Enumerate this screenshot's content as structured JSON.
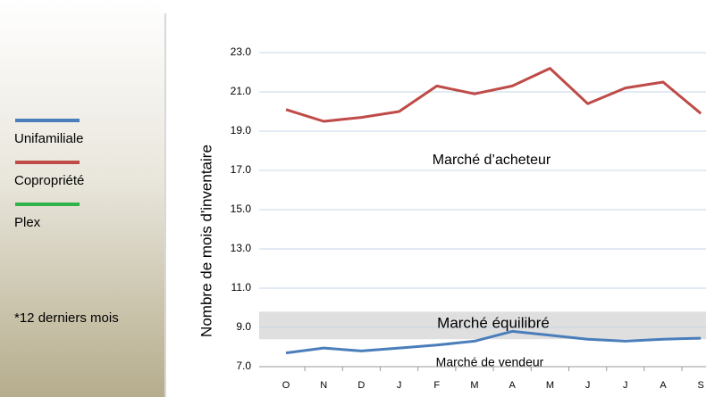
{
  "chart_data": {
    "type": "line",
    "ylabel": "Nombre de mois d'inventaire",
    "categories": [
      "O",
      "N",
      "D",
      "J",
      "F",
      "M",
      "A",
      "M",
      "J",
      "J",
      "A",
      "S"
    ],
    "series": [
      {
        "name": "Unifamiliale",
        "color": "#4a7ebb",
        "values": [
          7.7,
          7.95,
          7.8,
          7.95,
          8.1,
          8.3,
          8.8,
          8.6,
          8.4,
          8.3,
          8.4,
          8.45
        ]
      },
      {
        "name": "Copropriété",
        "color": "#be4b48",
        "values": [
          20.1,
          19.5,
          19.7,
          20.0,
          21.3,
          20.9,
          21.3,
          22.2,
          20.4,
          21.2,
          21.5,
          19.9
        ]
      },
      {
        "name": "Plex",
        "color": "#2fb34a",
        "values": [
          null,
          null,
          null,
          null,
          null,
          null,
          null,
          null,
          null,
          null,
          null,
          null
        ]
      }
    ],
    "ylim": [
      7,
      23
    ],
    "yticks": [
      {
        "value": 7,
        "label": "7.0"
      },
      {
        "value": 9,
        "label": "9.0"
      },
      {
        "value": 11,
        "label": "11.0"
      },
      {
        "value": 13,
        "label": "13.0"
      },
      {
        "value": 15,
        "label": "15.0"
      },
      {
        "value": 17,
        "label": "17.0"
      },
      {
        "value": 19,
        "label": "19.0"
      },
      {
        "value": 21,
        "label": "21.0"
      },
      {
        "value": 23,
        "label": "23.0"
      }
    ],
    "grid": true,
    "band": {
      "label": "Marché équilibré",
      "range": [
        8.4,
        9.8
      ]
    },
    "annotations": [
      "Marché d’acheteur",
      "Marché de vendeur"
    ],
    "note": "*12 derniers mois"
  }
}
